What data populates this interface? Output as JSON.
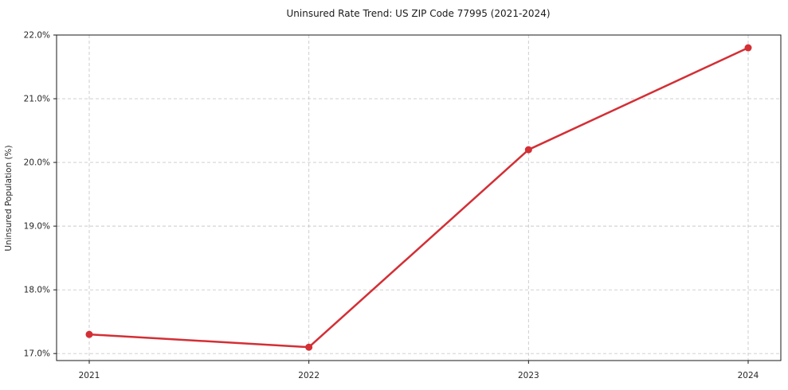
{
  "chart_data": {
    "type": "line",
    "title": "Uninsured Rate Trend: US ZIP Code 77995 (2021-2024)",
    "xlabel": "",
    "ylabel": "Uninsured Population (%)",
    "categories": [
      "2021",
      "2022",
      "2023",
      "2024"
    ],
    "series": [
      {
        "name": "Uninsured rate",
        "values": [
          17.3,
          17.1,
          20.2,
          21.8
        ]
      }
    ],
    "ytick_values": [
      17.0,
      18.0,
      19.0,
      20.0,
      21.0,
      22.0
    ],
    "ytick_labels": [
      "17.0%",
      "18.0%",
      "19.0%",
      "20.0%",
      "21.0%",
      "22.0%"
    ],
    "ylim": [
      16.89,
      22.0
    ],
    "grid": true,
    "grid_style": "dashed",
    "legend_position": "none",
    "colors": {
      "line": "#d32f35",
      "marker": "#d32f35",
      "grid": "#c9c9c9",
      "spine": "#1a1a1a",
      "tick": "#1a1a1a",
      "background": "#ffffff"
    }
  }
}
